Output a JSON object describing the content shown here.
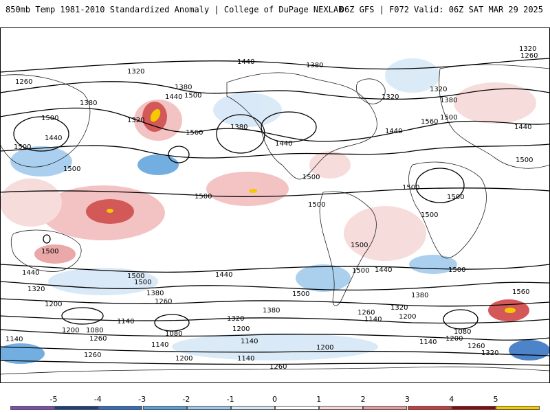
{
  "header": {
    "title": "850mb Temp 1981-2010 Standardized Anomaly | College of DuPage NEXLAB",
    "valid": "06Z GFS | F072 Valid: 06Z SAT MAR 29 2025"
  },
  "legend": {
    "ticks": [
      "-5",
      "-4",
      "-3",
      "-2",
      "-1",
      "0",
      "1",
      "2",
      "3",
      "4",
      "5"
    ],
    "colors": [
      "#7a4fb0",
      "#1f3f7a",
      "#2e6fc0",
      "#5aa0dc",
      "#9cc8ec",
      "#d4e6f6",
      "#ffffff",
      "#f6d6d6",
      "#e89a9a",
      "#cc3b3b",
      "#8c0a0a",
      "#f5c800"
    ]
  },
  "contour_labels": [
    "1320",
    "1440",
    "1380",
    "1260",
    "1500",
    "1560",
    "1200",
    "1140",
    "1080"
  ],
  "colors": {
    "cold": "#5aa0dc",
    "cold_strong": "#2e6fc0",
    "warm": "#f2b8b8",
    "warm_strong": "#cc3b3b",
    "extreme": "#f5c800",
    "contour": "#000000",
    "coast": "#222222"
  }
}
